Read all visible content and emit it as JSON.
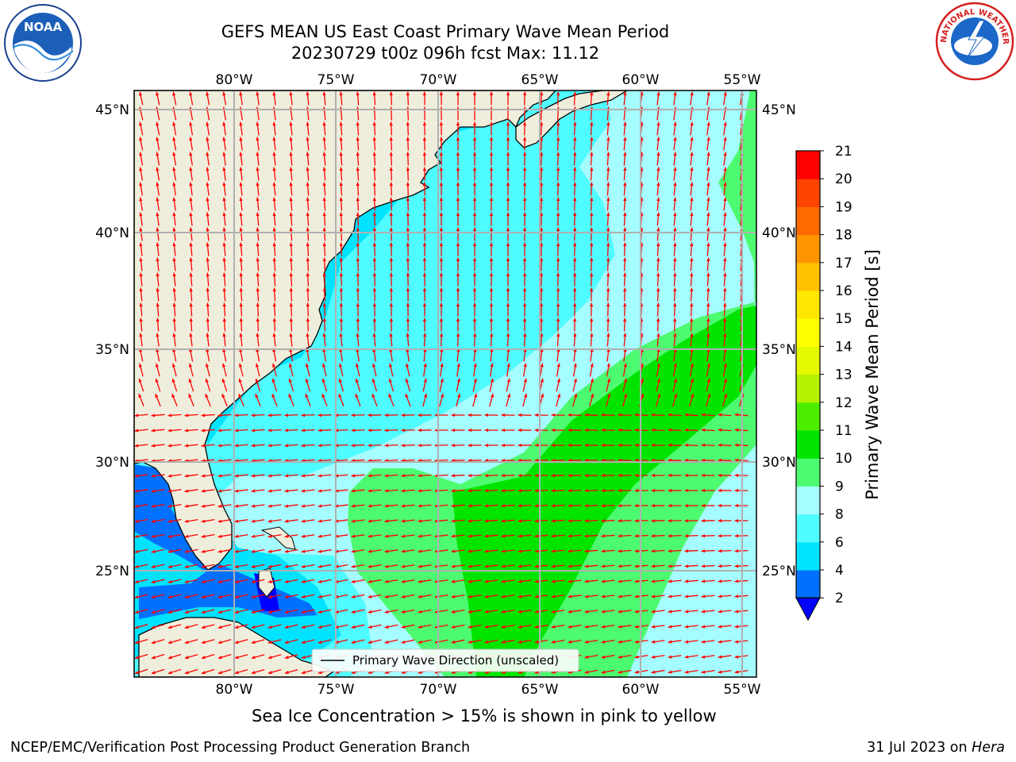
{
  "title": {
    "line1": "GEFS MEAN US East Coast Primary Wave Mean Period",
    "line2": "20230729 t00z 096h fcst   Max: 11.12"
  },
  "map": {
    "lon_labels": [
      "80°W",
      "75°W",
      "70°W",
      "65°W",
      "60°W",
      "55°W"
    ],
    "lat_labels": [
      "45°N",
      "40°N",
      "35°N",
      "30°N",
      "25°N"
    ],
    "legend_label": "Primary Wave Direction (unscaled)",
    "land_color": "#efeedc",
    "arrow_color": "#ff0000",
    "gridline_color": "#b0b0b0"
  },
  "colorbar": {
    "label": "Primary Wave Mean Period [s]",
    "ticks": [
      "2",
      "4",
      "6",
      "8",
      "9",
      "10",
      "11",
      "12",
      "13",
      "14",
      "15",
      "16",
      "17",
      "18",
      "19",
      "20",
      "21"
    ],
    "colors": [
      "#0071ff",
      "#00e3ff",
      "#4ffcff",
      "#a5fdff",
      "#4dfb70",
      "#00e400",
      "#4ded00",
      "#b4f200",
      "#e3fa00",
      "#ffff00",
      "#ffe700",
      "#ffc000",
      "#ff9600",
      "#ff6a00",
      "#ff4400",
      "#ff0000"
    ],
    "under_color": "#0000ff"
  },
  "footer": {
    "sea_ice_note": "Sea Ice Concentration > 15% is shown in pink to yellow",
    "credit": "NCEP/EMC/Verification Post Processing Product Generation Branch",
    "date": "31 Jul 2023 on",
    "machine": "Hera"
  },
  "logos": {
    "noaa_text": "NOAA",
    "nws_text": "NATIONAL WEATHER SERVICE"
  }
}
